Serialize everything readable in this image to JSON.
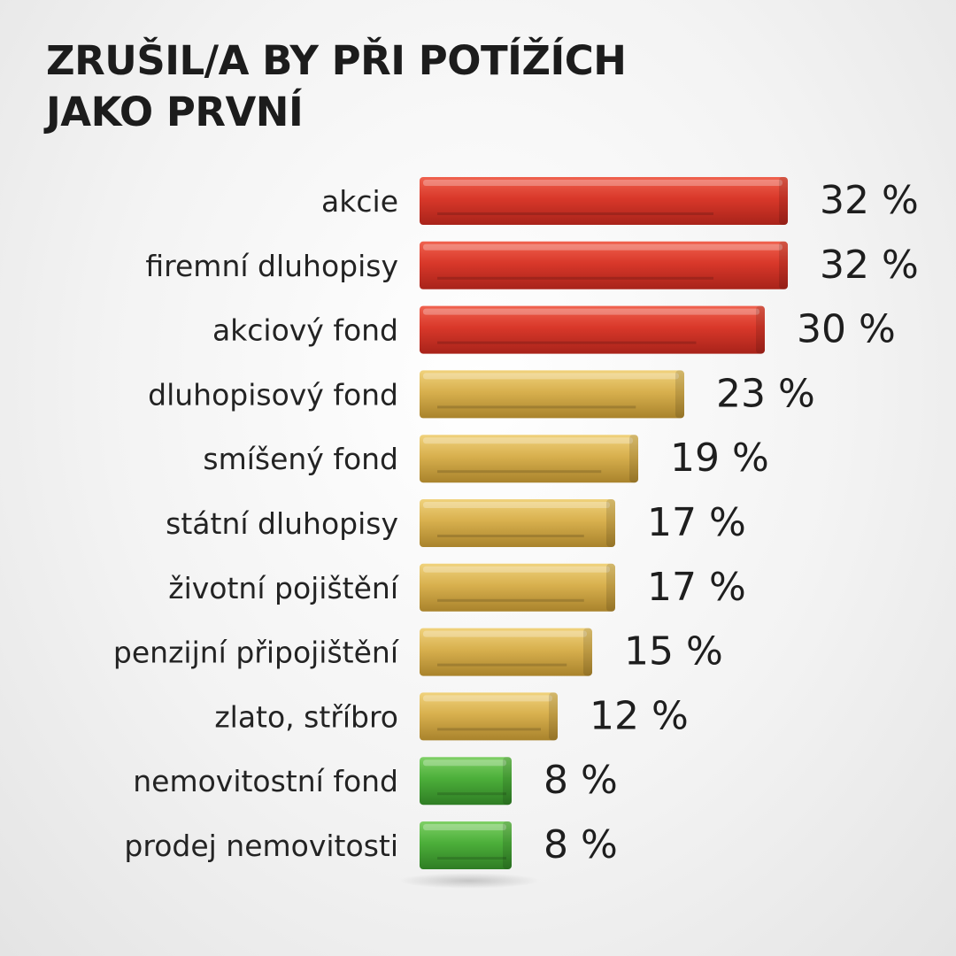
{
  "title_lines": [
    "ZRUŠIL/A BY PŘI POTÍŽÍCH",
    "JAKO PRVNÍ"
  ],
  "chart_data": {
    "type": "bar",
    "orientation": "horizontal",
    "title": "ZRUŠIL/A BY PŘI POTÍŽÍCH JAKO PRVNÍ",
    "categories": [
      "akcie",
      "firemní dluhopisy",
      "akciový fond",
      "dluhopisový fond",
      "smíšený fond",
      "státní dluhopisy",
      "životní pojištění",
      "penzijní připojištění",
      "zlato, stříbro",
      "nemovitostní fond",
      "prodej nemovitosti"
    ],
    "values": [
      32,
      32,
      30,
      23,
      19,
      17,
      17,
      15,
      12,
      8,
      8
    ],
    "value_labels": [
      "32 %",
      "32 %",
      "30 %",
      "23 %",
      "19 %",
      "17 %",
      "17 %",
      "15 %",
      "12 %",
      "8 %",
      "8 %"
    ],
    "bar_color_groups": [
      "red",
      "red",
      "red",
      "gold",
      "gold",
      "gold",
      "gold",
      "gold",
      "gold",
      "green",
      "green"
    ],
    "colors": {
      "red": "#d9382a",
      "gold": "#d8b04e",
      "green": "#4caf3a"
    },
    "xlabel": "",
    "ylabel": "",
    "grid": false,
    "legend": "none"
  }
}
